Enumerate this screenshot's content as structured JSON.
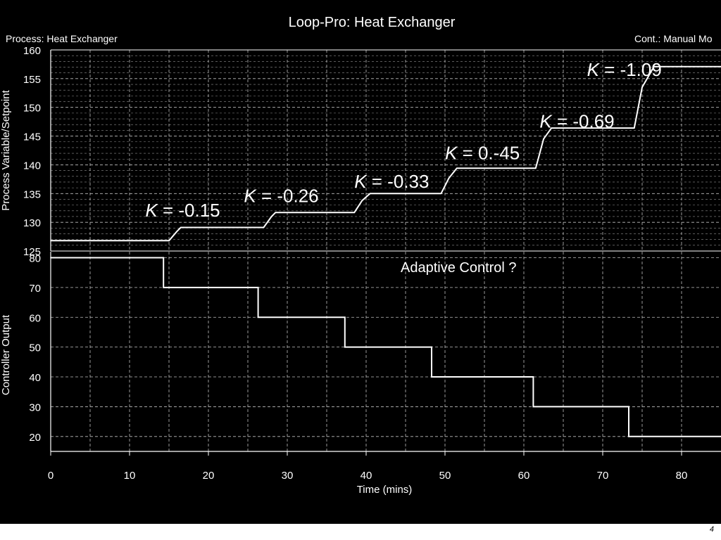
{
  "window": {
    "title": "Loop-Pro:  Heat Exchanger",
    "process_label": "Process: Heat Exchanger",
    "controller_label": "Cont.: Manual Mo"
  },
  "page_number": "4",
  "colors": {
    "background": "#000000",
    "foreground": "#ffffff",
    "grid": "#bfbfbf",
    "page": "#ffffff"
  },
  "chart_data": [
    {
      "type": "line",
      "ylabel": "Process Variable/Setpoint",
      "ylim": [
        125,
        160
      ],
      "yticks": [
        125,
        130,
        135,
        140,
        145,
        150,
        155,
        160
      ],
      "xlim": [
        0,
        85
      ],
      "grid": true,
      "series": [
        {
          "x": [
            0,
            15,
            16,
            16.5,
            27,
            28,
            28.5,
            38.5,
            39.5,
            40.5,
            49.5,
            50.5,
            51.5,
            61.5,
            62.5,
            63.5,
            74,
            75,
            76.5,
            85
          ],
          "y": [
            126.8,
            126.8,
            128.4,
            129.1,
            129.1,
            131,
            131.7,
            131.7,
            133.8,
            135,
            135,
            137.7,
            139.4,
            139.4,
            144.5,
            146.4,
            146.4,
            153.5,
            157.1,
            157.1
          ]
        }
      ],
      "annotations": [
        {
          "label": "K",
          "text": " = -0.15",
          "x": 12,
          "y": 131
        },
        {
          "label": "K",
          "text": " = -0.26",
          "x": 24.5,
          "y": 133.5
        },
        {
          "label": "K",
          "text": " = -0.33",
          "x": 38.5,
          "y": 136
        },
        {
          "label": "K",
          "text": " = 0.-45",
          "x": 50,
          "y": 141
        },
        {
          "label": "K",
          "text": " = -0.69",
          "x": 62,
          "y": 146.5
        },
        {
          "label": "K",
          "text": " = -1.09",
          "x": 68,
          "y": 155.5
        }
      ]
    },
    {
      "type": "line",
      "ylabel": "Controller Output",
      "xlabel": "Time (mins)",
      "ylim": [
        15,
        82
      ],
      "yticks": [
        20,
        30,
        40,
        50,
        60,
        70,
        80
      ],
      "xlim": [
        0,
        85
      ],
      "xticks": [
        0,
        10,
        20,
        30,
        40,
        50,
        60,
        70,
        80
      ],
      "grid": true,
      "series": [
        {
          "x": [
            0,
            14.3,
            14.3,
            26.3,
            26.3,
            37.3,
            37.3,
            48.3,
            48.3,
            61.2,
            61.2,
            73.3,
            73.3,
            85
          ],
          "y": [
            80,
            80,
            70,
            70,
            60,
            60,
            50,
            50,
            40,
            40,
            30,
            30,
            20,
            20
          ]
        }
      ],
      "annotation": "Adaptive Control ?"
    }
  ]
}
